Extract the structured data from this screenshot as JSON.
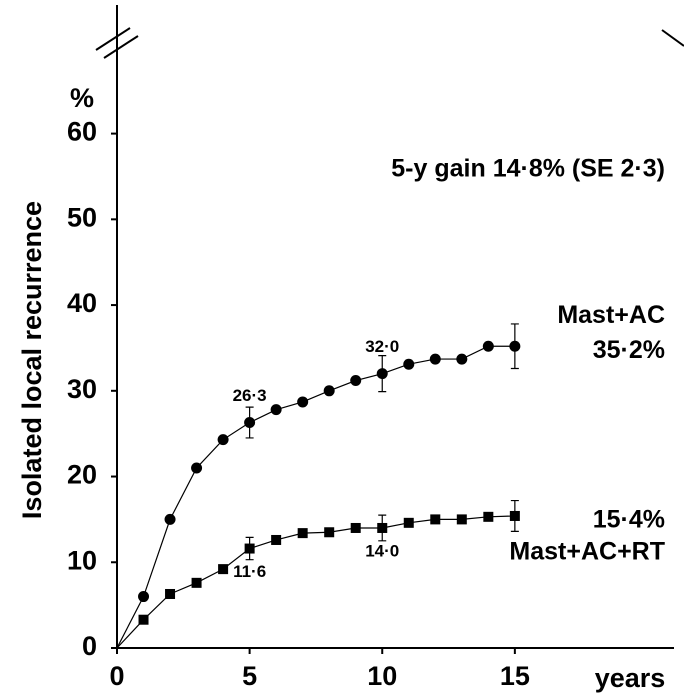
{
  "chart_data": {
    "type": "line",
    "y_label": "Isolated local recurrence",
    "y_unit": "%",
    "x_label": "years",
    "annotation": "5-y gain 14·8% (SE 2·3)",
    "x": [
      1,
      2,
      3,
      4,
      5,
      6,
      7,
      8,
      9,
      10,
      11,
      12,
      13,
      14,
      15
    ],
    "series": [
      {
        "name": "Mast+AC",
        "color": "#000000",
        "marker": "circle",
        "values": [
          6.0,
          15.0,
          21.0,
          24.3,
          26.3,
          27.8,
          28.7,
          30.0,
          31.2,
          32.0,
          33.1,
          33.7,
          33.7,
          35.2,
          35.2
        ],
        "errors": [
          null,
          null,
          null,
          null,
          1.8,
          null,
          null,
          null,
          null,
          2.1,
          null,
          null,
          null,
          null,
          2.6
        ],
        "value_labels": [
          null,
          null,
          null,
          null,
          "26·3",
          null,
          null,
          null,
          null,
          "32·0",
          null,
          null,
          null,
          null,
          "35·2%"
        ]
      },
      {
        "name": "Mast+AC+RT",
        "color": "#000000",
        "marker": "square",
        "values": [
          3.3,
          6.3,
          7.6,
          9.2,
          11.6,
          12.6,
          13.4,
          13.5,
          14.0,
          14.0,
          14.6,
          15.0,
          15.0,
          15.3,
          15.4
        ],
        "errors": [
          null,
          null,
          null,
          null,
          1.3,
          null,
          null,
          null,
          null,
          1.5,
          null,
          null,
          null,
          null,
          1.8
        ],
        "value_labels": [
          null,
          null,
          null,
          null,
          "11·6",
          null,
          null,
          null,
          null,
          "14·0",
          null,
          null,
          null,
          null,
          "15·4%"
        ]
      }
    ],
    "xlim": [
      0,
      21
    ],
    "xticks": [
      0,
      5,
      10,
      15
    ],
    "ylim": [
      0,
      75
    ],
    "yticks": [
      0,
      10,
      20,
      30,
      40,
      50,
      60
    ]
  }
}
